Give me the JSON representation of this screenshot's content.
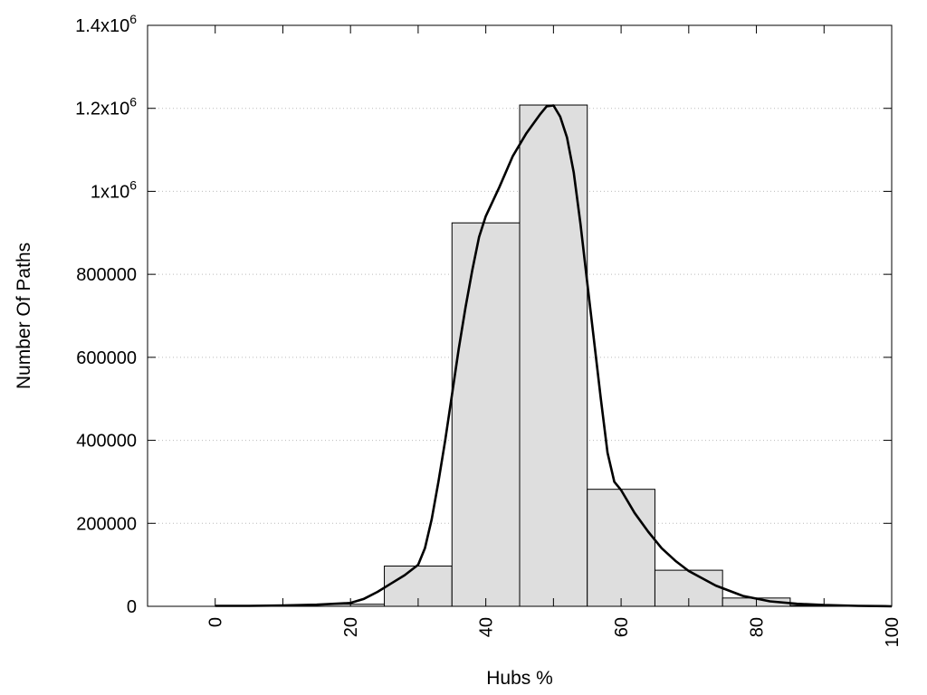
{
  "chart_data": {
    "type": "bar",
    "title": "",
    "xlabel": "Hubs %",
    "ylabel": "Number Of Paths",
    "xlim": [
      -10,
      100
    ],
    "ylim": [
      0,
      1400000
    ],
    "grid": "horizontal-dotted",
    "x_ticks": [
      {
        "value": 0,
        "label": "0"
      },
      {
        "value": 20,
        "label": "20"
      },
      {
        "value": 40,
        "label": "40"
      },
      {
        "value": 60,
        "label": "60"
      },
      {
        "value": 80,
        "label": "80"
      },
      {
        "value": 100,
        "label": "100"
      }
    ],
    "y_ticks": [
      {
        "value": 0,
        "label": "0"
      },
      {
        "value": 200000,
        "label": "200000"
      },
      {
        "value": 400000,
        "label": "400000"
      },
      {
        "value": 600000,
        "label": "600000"
      },
      {
        "value": 800000,
        "label": "800000"
      },
      {
        "value": 1000000,
        "mantissa": "1x10",
        "exponent": "6"
      },
      {
        "value": 1200000,
        "mantissa": "1.2x10",
        "exponent": "6"
      },
      {
        "value": 1400000,
        "mantissa": "1.4x10",
        "exponent": "6"
      }
    ],
    "bar_width": 10,
    "bars": [
      {
        "x": 0,
        "value": 0
      },
      {
        "x": 10,
        "value": 1000
      },
      {
        "x": 20,
        "value": 5000
      },
      {
        "x": 30,
        "value": 97000
      },
      {
        "x": 40,
        "value": 924000
      },
      {
        "x": 50,
        "value": 1208000
      },
      {
        "x": 60,
        "value": 282000
      },
      {
        "x": 70,
        "value": 87000
      },
      {
        "x": 80,
        "value": 20000
      },
      {
        "x": 90,
        "value": 2000
      },
      {
        "x": 100,
        "value": 0
      }
    ],
    "curve": {
      "x": [
        0,
        5,
        10,
        15,
        20,
        22,
        24,
        26,
        28,
        30,
        31,
        32,
        33,
        34,
        35,
        36,
        37,
        38,
        39,
        40,
        42,
        44,
        46,
        48,
        49,
        50,
        51,
        52,
        53,
        54,
        55,
        56,
        57,
        58,
        59,
        60,
        62,
        64,
        66,
        68,
        70,
        74,
        78,
        82,
        86,
        90,
        95,
        99,
        100
      ],
      "y": [
        1000,
        1000,
        2000,
        4000,
        8000,
        18000,
        35000,
        55000,
        75000,
        100000,
        140000,
        210000,
        300000,
        400000,
        510000,
        620000,
        720000,
        810000,
        890000,
        940000,
        1010000,
        1085000,
        1140000,
        1185000,
        1205000,
        1207000,
        1180000,
        1130000,
        1045000,
        920000,
        780000,
        640000,
        500000,
        370000,
        300000,
        280000,
        225000,
        180000,
        140000,
        110000,
        85000,
        50000,
        25000,
        12000,
        6000,
        3000,
        1000,
        500,
        0
      ]
    }
  }
}
